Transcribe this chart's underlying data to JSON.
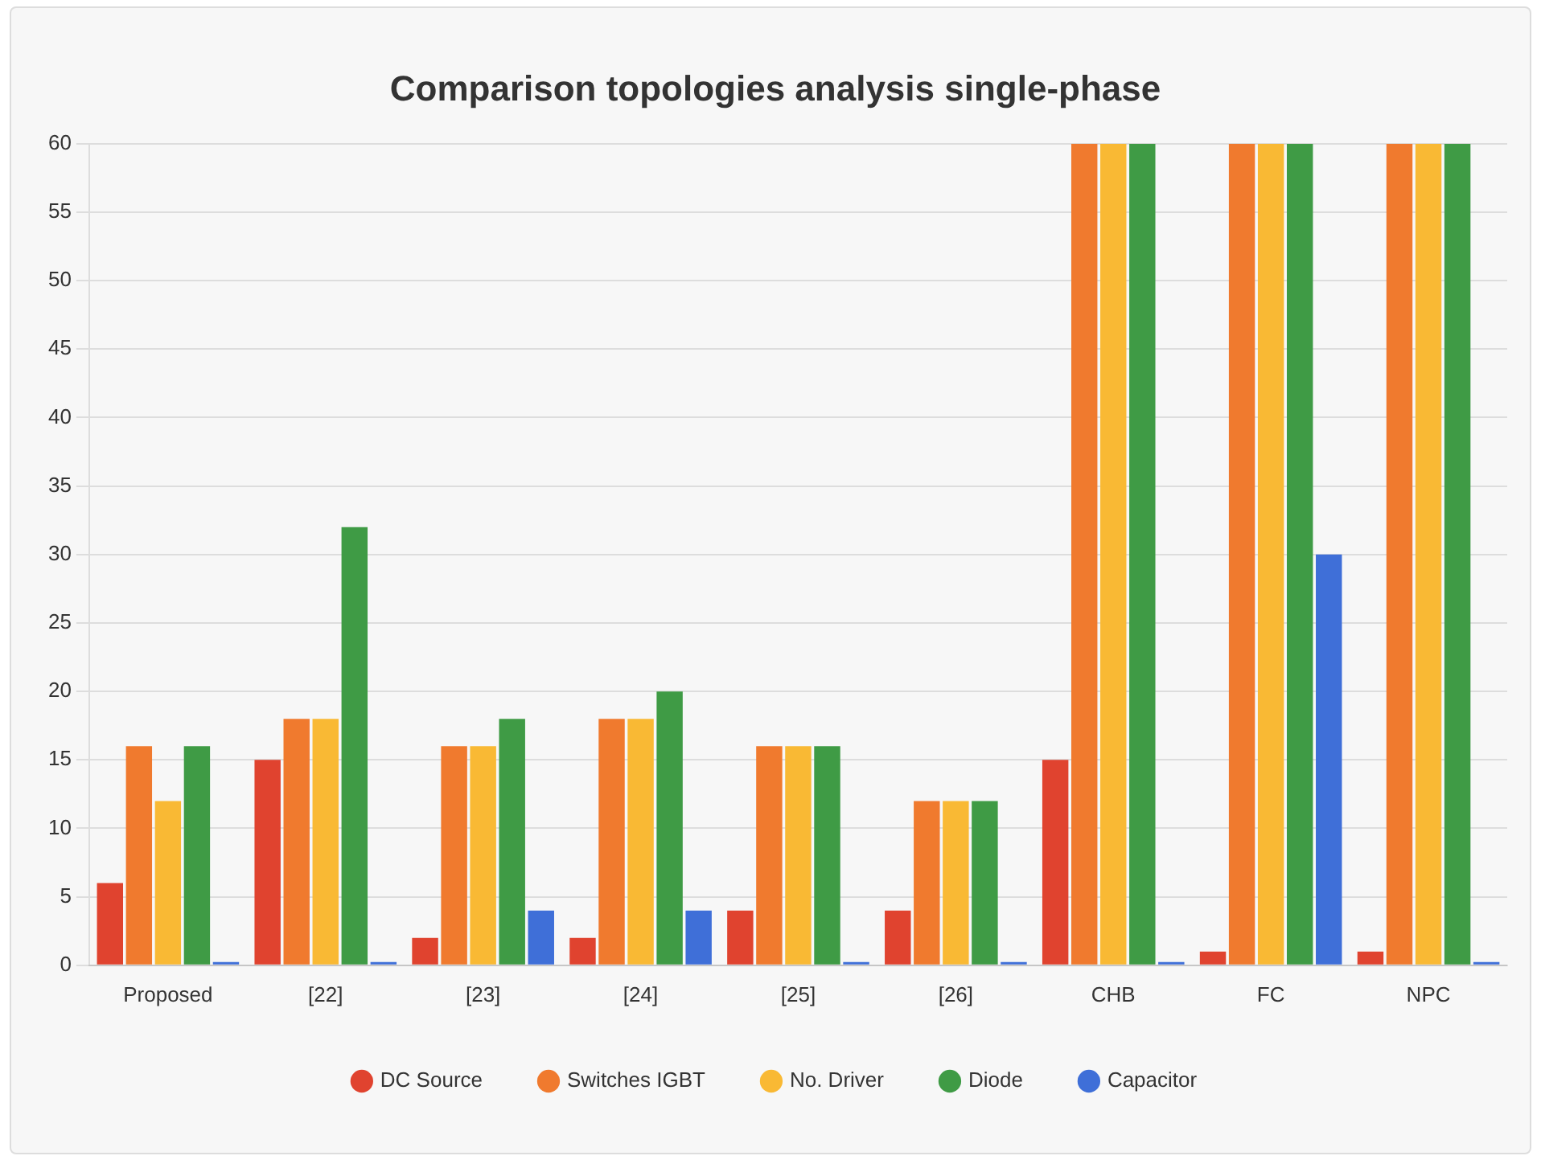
{
  "chart_data": {
    "type": "bar",
    "title": "Comparison topologies analysis single-phase",
    "categories": [
      "Proposed",
      "[22]",
      "[23]",
      "[24]",
      "[25]",
      "[26]",
      "CHB",
      "FC",
      "NPC"
    ],
    "series": [
      {
        "name": "DC Source",
        "color": "#e0432f",
        "values": [
          6,
          15,
          2,
          2,
          4,
          4,
          15,
          1,
          1
        ]
      },
      {
        "name": "Switches IGBT",
        "color": "#f07a2e",
        "values": [
          16,
          18,
          16,
          18,
          16,
          12,
          60,
          60,
          60
        ]
      },
      {
        "name": "No. Driver",
        "color": "#f9b934",
        "values": [
          12,
          18,
          16,
          18,
          16,
          12,
          60,
          60,
          60
        ]
      },
      {
        "name": "Diode",
        "color": "#3f9b45",
        "values": [
          16,
          32,
          18,
          20,
          16,
          12,
          60,
          60,
          60
        ]
      },
      {
        "name": "Capacitor",
        "color": "#3f6fd8",
        "values": [
          0,
          0,
          4,
          4,
          0,
          0,
          0,
          30,
          0
        ]
      }
    ],
    "ylim": [
      0,
      60
    ],
    "yticks": [
      0,
      5,
      10,
      15,
      20,
      25,
      30,
      35,
      40,
      45,
      50,
      55,
      60
    ],
    "grid": "y",
    "legend": "bottom"
  }
}
